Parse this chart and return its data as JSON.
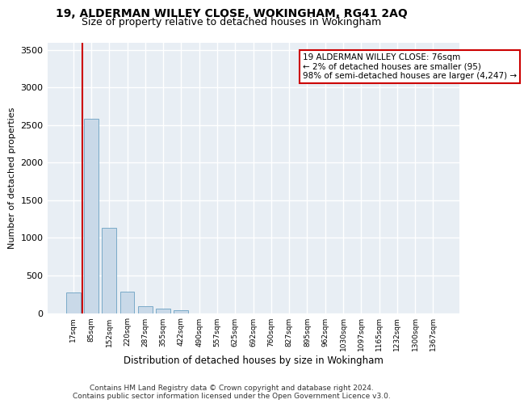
{
  "title": "19, ALDERMAN WILLEY CLOSE, WOKINGHAM, RG41 2AQ",
  "subtitle": "Size of property relative to detached houses in Wokingham",
  "xlabel": "Distribution of detached houses by size in Wokingham",
  "ylabel": "Number of detached properties",
  "bar_color": "#c9d9e8",
  "bar_edgecolor": "#7aaac8",
  "background_color": "#e8eef4",
  "categories": [
    "17sqm",
    "85sqm",
    "152sqm",
    "220sqm",
    "287sqm",
    "355sqm",
    "422sqm",
    "490sqm",
    "557sqm",
    "625sqm",
    "692sqm",
    "760sqm",
    "827sqm",
    "895sqm",
    "962sqm",
    "1030sqm",
    "1097sqm",
    "1165sqm",
    "1232sqm",
    "1300sqm",
    "1367sqm"
  ],
  "values": [
    270,
    2580,
    1130,
    280,
    90,
    55,
    35,
    0,
    0,
    0,
    0,
    0,
    0,
    0,
    0,
    0,
    0,
    0,
    0,
    0,
    0
  ],
  "ylim": [
    0,
    3600
  ],
  "yticks": [
    0,
    500,
    1000,
    1500,
    2000,
    2500,
    3000,
    3500
  ],
  "annotation_line1": "19 ALDERMAN WILLEY CLOSE: 76sqm",
  "annotation_line2": "← 2% of detached houses are smaller (95)",
  "annotation_line3": "98% of semi-detached houses are larger (4,247) →",
  "vline_color": "#cc0000",
  "footer": "Contains HM Land Registry data © Crown copyright and database right 2024.\nContains public sector information licensed under the Open Government Licence v3.0."
}
